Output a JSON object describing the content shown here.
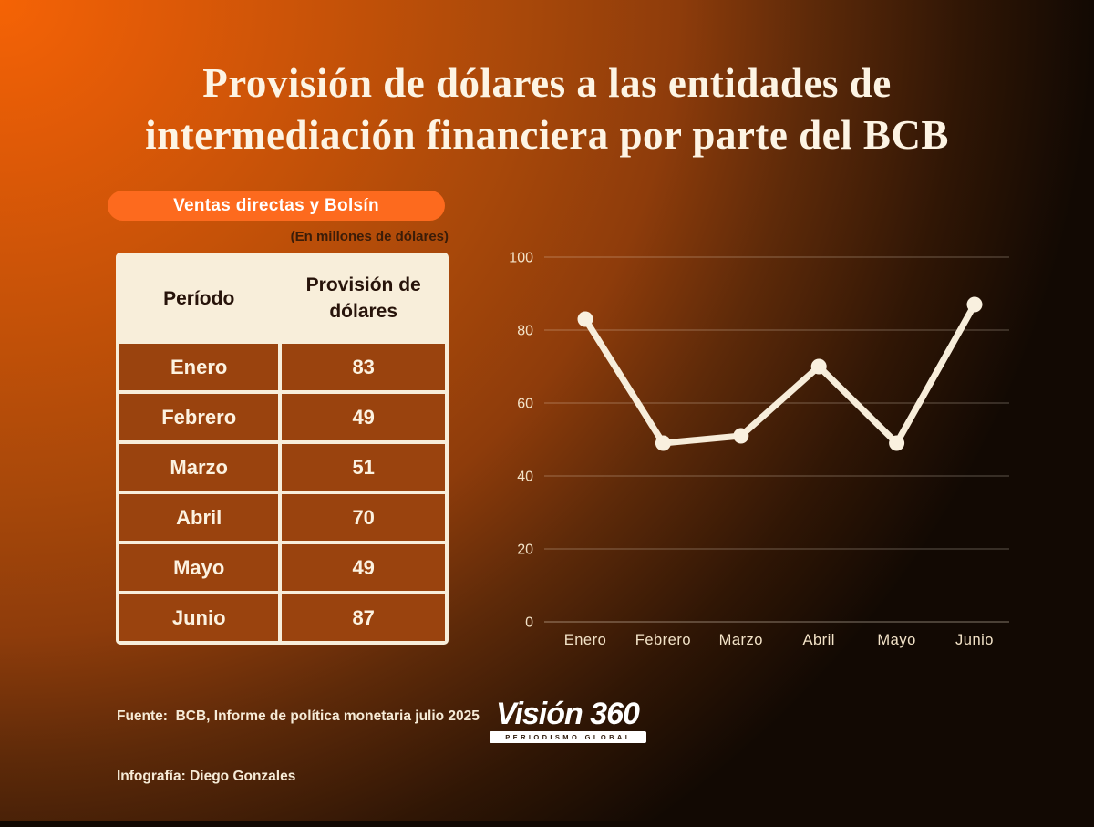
{
  "title": {
    "line1": "Provisión de dólares a las entidades de",
    "line2": "intermediación financiera por parte del BCB"
  },
  "badge": {
    "label": "Ventas directas y Bolsín"
  },
  "units_note": "(En millones de dólares)",
  "table": {
    "columns": [
      "Período",
      "Provisión de dólares"
    ],
    "rows": [
      {
        "period": "Enero",
        "value": "83"
      },
      {
        "period": "Febrero",
        "value": "49"
      },
      {
        "period": "Marzo",
        "value": "51"
      },
      {
        "period": "Abril",
        "value": "70"
      },
      {
        "period": "Mayo",
        "value": "49"
      },
      {
        "period": "Junio",
        "value": "87"
      }
    ]
  },
  "chart_data": {
    "type": "line",
    "title": "",
    "categories": [
      "Enero",
      "Febrero",
      "Marzo",
      "Abril",
      "Mayo",
      "Junio"
    ],
    "values": [
      83,
      49,
      51,
      70,
      49,
      87
    ],
    "series_name": "Provisión de dólares (millones de USD)",
    "xlabel": "",
    "ylabel": "",
    "ylim": [
      0,
      100
    ],
    "yticks": [
      100,
      80,
      60,
      40,
      20,
      0
    ],
    "grid": true,
    "legend": false,
    "line_color": "#f7edda",
    "marker_color": "#f9f0df",
    "gridline_color": "rgba(248,236,217,0.32)",
    "axis_label_color": "#f3e3c8"
  },
  "footer": {
    "source": "Fuente:  BCB, Informe de política monetaria julio 2025",
    "credit": "Infografía: Diego Gonzales"
  },
  "logo": {
    "name": "Visión 360",
    "tagline": "PERIODISMO GLOBAL"
  },
  "colors": {
    "accent_orange": "#fd6a1e",
    "title_text": "#fdf4e4",
    "units_text": "#3a1c08",
    "table_cream": "#f8eeda",
    "table_header_text": "#27130a",
    "table_row_bg": "#9a430e",
    "table_row_text": "#fcf2e0",
    "footer_text": "#f6ebd7",
    "tagline_text": "#2b1708"
  }
}
